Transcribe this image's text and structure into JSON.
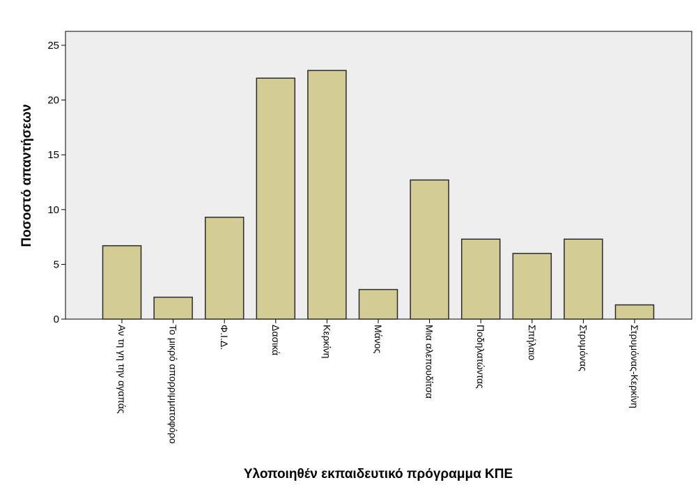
{
  "chart_data": {
    "type": "bar",
    "xlabel": "Υλοποιηθέν εκπαιδευτικό πρόγραμμα ΚΠΕ",
    "ylabel": "Ποσοστό απαντήσεων",
    "ylim": [
      0,
      25
    ],
    "yticks": [
      "0",
      "5",
      "10",
      "15",
      "20",
      "25"
    ],
    "categories": [
      "Αν τη γη την αγαπάς",
      "Το μικρό απορριμματοφόρο",
      "Φ.Ι.Δ.",
      "Δασικά",
      "Κερκίνη",
      "Μάνος",
      "Μια αλεπουδίτσα",
      "Ποδηλατώντας",
      "Σπήλαιο",
      "Στρυμόνας",
      "Στρυμόνας-Κερκίνη"
    ],
    "values": [
      6.7,
      2.0,
      9.3,
      22.0,
      22.7,
      2.7,
      12.7,
      7.3,
      6.0,
      7.3,
      1.3
    ],
    "grid": false,
    "colors": {
      "bar_fill": "#d3cd95",
      "bar_stroke": "#2a2a2a",
      "plot_bg": "#eeeeee",
      "axis": "#000000"
    }
  }
}
